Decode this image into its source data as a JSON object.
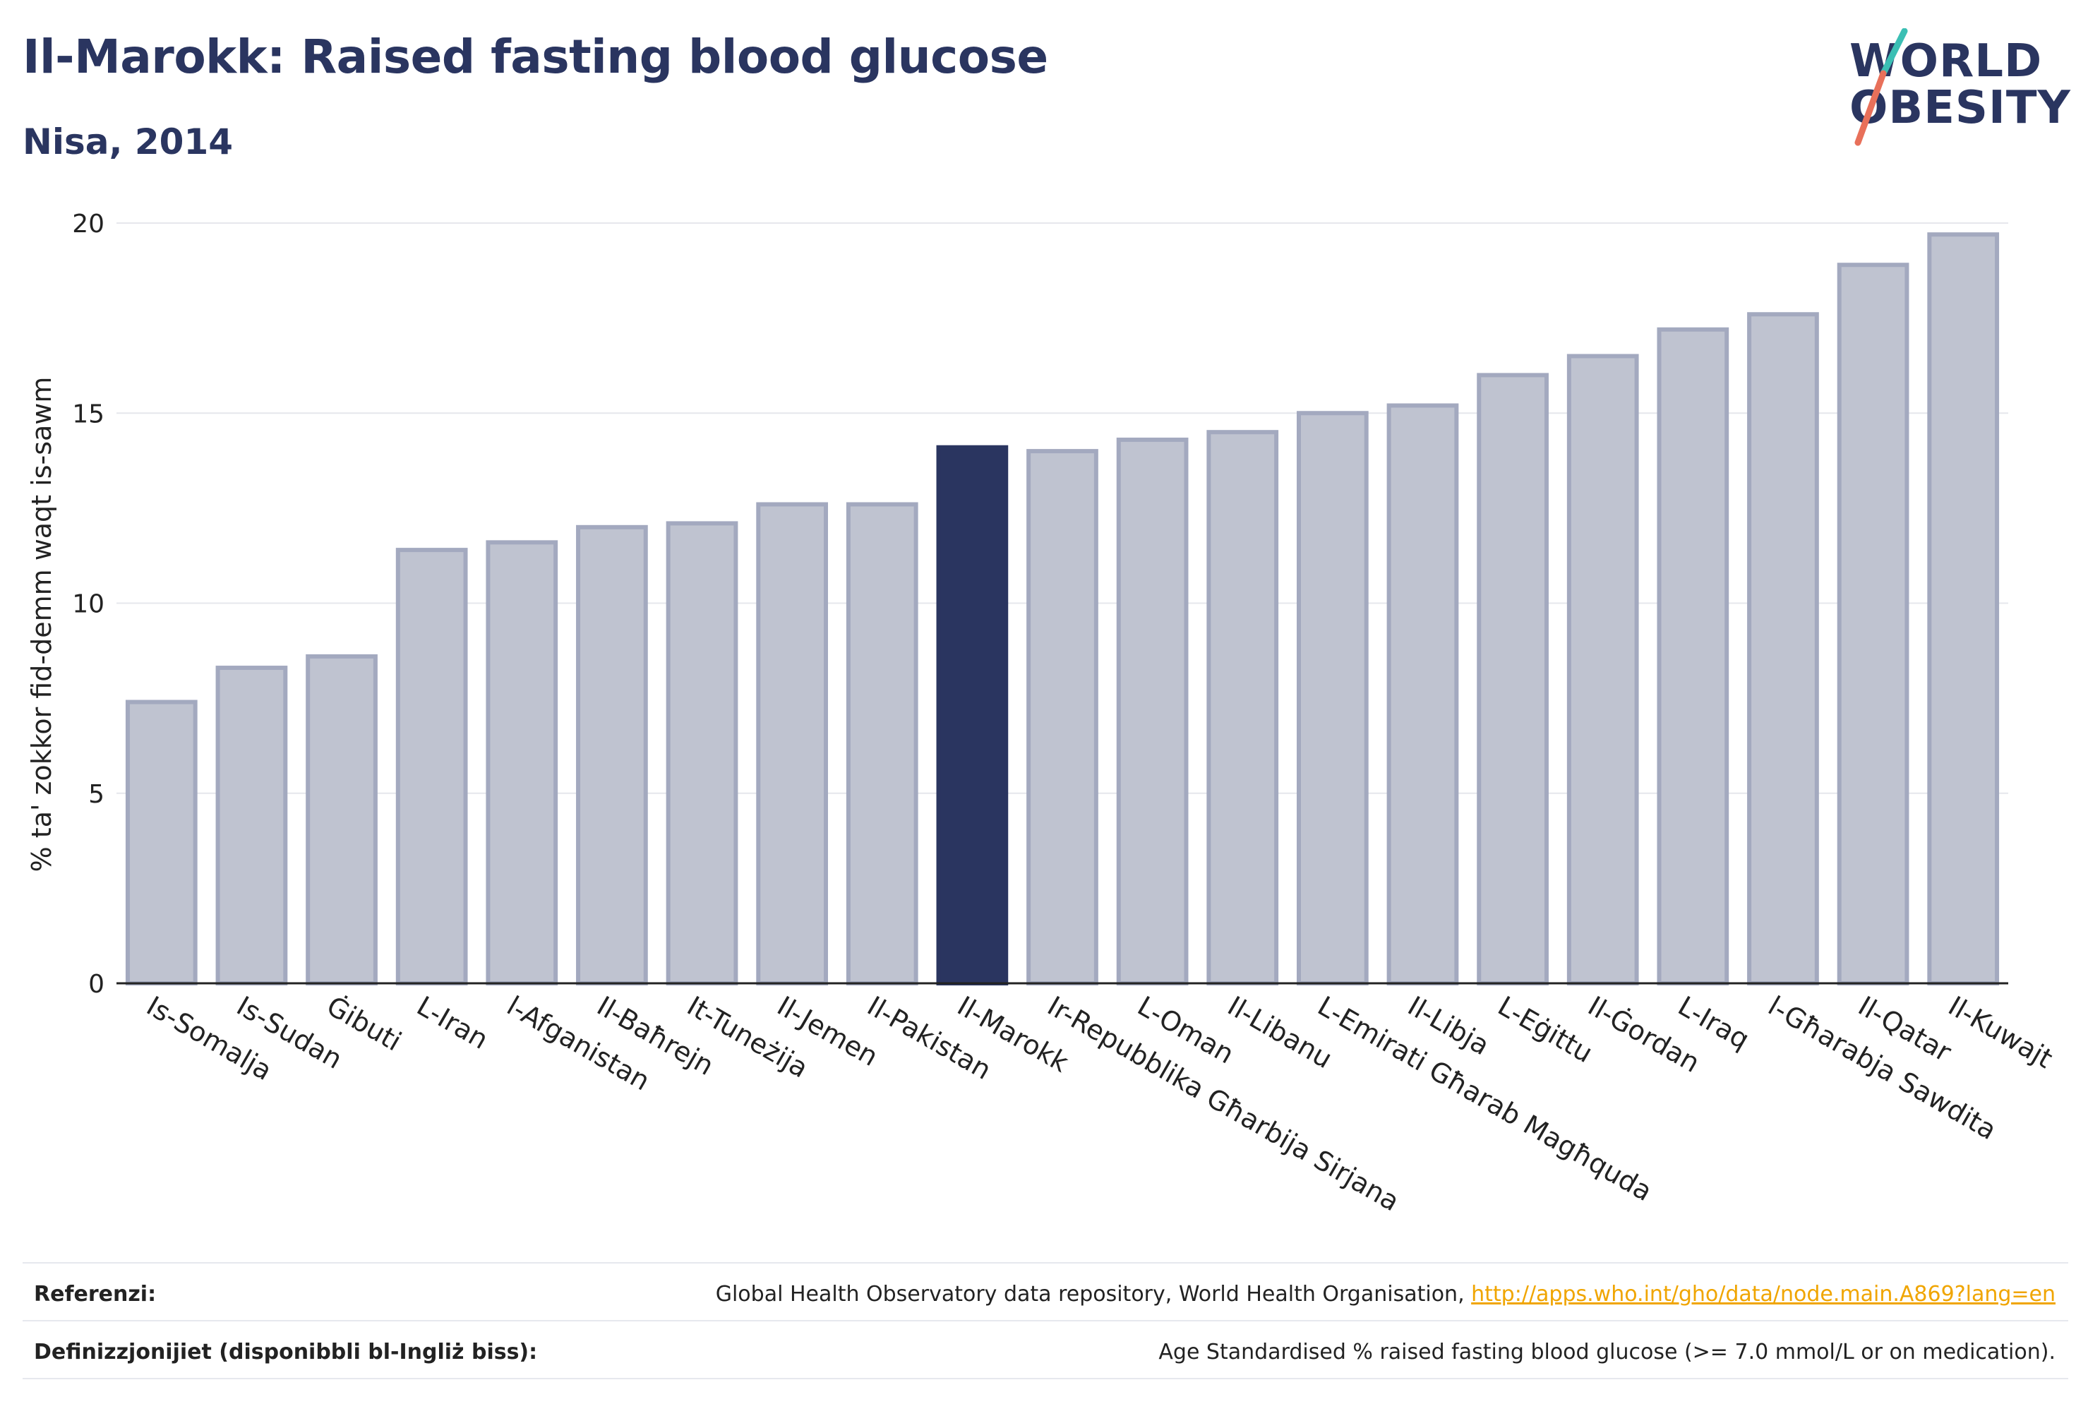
{
  "header": {
    "title": "Il-Marokk: Raised fasting blood glucose",
    "subtitle": "Nisa, 2014"
  },
  "logo": {
    "line1": "WORLD",
    "line2": "OBESITY",
    "colors": {
      "teal": "#3bbfb4",
      "coral": "#e8705a",
      "navy": "#2a3560"
    }
  },
  "chart_data": {
    "type": "bar",
    "ylabel": "% ta' zokkor fid-demm waqt is-sawm",
    "ylim": [
      0,
      20
    ],
    "yticks": [
      0,
      5,
      10,
      15,
      20
    ],
    "grid": true,
    "highlight": "Il-Marokk",
    "colors": {
      "bar": "#bfc3d0",
      "bar_border": "#a3a9bf",
      "highlight": "#2a3560"
    },
    "categories": [
      "Is-Somalja",
      "Is-Sudan",
      "Ġibuti",
      "L-Iran",
      "l-Afganistan",
      "Il-Baħrejn",
      "It-Tuneżija",
      "Il-Jemen",
      "Il-Pakistan",
      "Il-Marokk",
      "Ir-Repubblika Għarbija Sirjana",
      "L-Oman",
      "Il-Libanu",
      "L-Emirati Għarab Magħquda",
      "Il-Libja",
      "L-Eġittu",
      "Il-Ġordan",
      "L-Iraq",
      "l-Għarabja Sawdita",
      "Il-Qatar",
      "Il-Kuwajt"
    ],
    "values": [
      7.4,
      8.3,
      8.6,
      11.4,
      11.6,
      12.0,
      12.1,
      12.6,
      12.6,
      14.1,
      14.0,
      14.3,
      14.5,
      15.0,
      15.2,
      16.0,
      16.5,
      17.2,
      17.6,
      18.9,
      19.7
    ]
  },
  "footer": {
    "ref_label": "Referenzi:",
    "ref_text": "Global Health Observatory data repository, World Health Organisation, ",
    "ref_link": "http://apps.who.int/gho/data/node.main.A869?lang=en",
    "def_label": "Definizzjonijiet (disponibbli bl-Ingliż biss):",
    "def_text": "Age Standardised % raised fasting blood glucose (>= 7.0 mmol/L or on medication)."
  }
}
